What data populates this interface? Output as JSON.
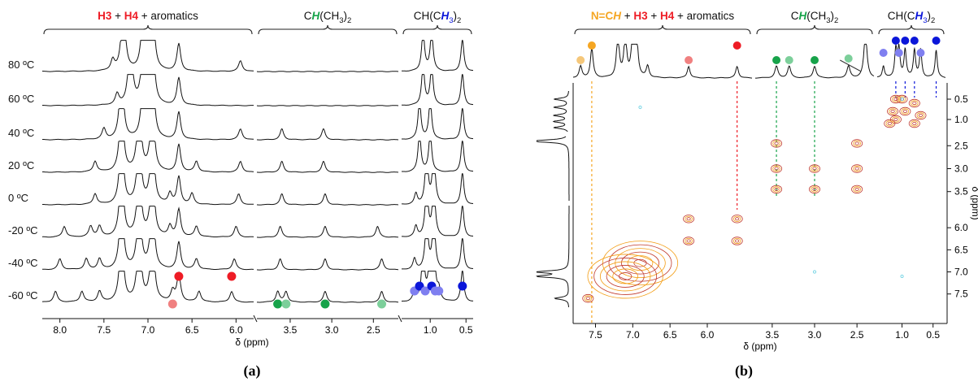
{
  "colors": {
    "red": "#ee1c25",
    "light_red": "#f08080",
    "green": "#17a34a",
    "light_green": "#7ccf9a",
    "blue": "#0b16d9",
    "light_blue": "#7f7ff0",
    "orange": "#f5a623",
    "light_orange": "#f5c77a",
    "trace": "#111111",
    "contour_red": "#c0392b",
    "contour_orange": "#f39c12",
    "contour_cyan": "#7fd7e6"
  },
  "panel_a": {
    "label": "(a)",
    "xlabel": "δ (ppm)",
    "region_labels": [
      {
        "parts": [
          [
            "H3",
            "red"
          ],
          [
            " + ",
            "black"
          ],
          [
            "H4",
            "red"
          ],
          [
            " + aromatics",
            "black"
          ]
        ]
      },
      {
        "parts": [
          [
            "C",
            "black"
          ],
          [
            "H",
            "green"
          ],
          [
            "(CH",
            "black"
          ],
          [
            "3",
            "black_sub"
          ],
          [
            ")",
            "black"
          ],
          [
            "2",
            "black_sub"
          ]
        ]
      },
      {
        "parts": [
          [
            "CH(C",
            "black"
          ],
          [
            "H",
            "blue"
          ],
          [
            "3",
            "blue_sub"
          ],
          [
            ")",
            "black"
          ],
          [
            "2",
            "black_sub"
          ]
        ]
      }
    ],
    "ticks": [
      "8.0",
      "7.5",
      "7.0",
      "6.5",
      "6.0",
      "3.5",
      "3.0",
      "2.5",
      "1.0",
      "0.5"
    ]
  },
  "panel_b": {
    "label": "(b)",
    "xlabel": "δ (ppm)",
    "ylabel": "δ (ppm)",
    "region_labels": [
      {
        "parts": [
          [
            "N=C",
            "orange"
          ],
          [
            "H",
            "orange"
          ],
          [
            " + ",
            "black"
          ],
          [
            "H3",
            "red"
          ],
          [
            " + ",
            "black"
          ],
          [
            "H4",
            "red"
          ],
          [
            " + aromatics",
            "black"
          ]
        ]
      },
      {
        "parts": [
          [
            "C",
            "black"
          ],
          [
            "H",
            "green"
          ],
          [
            "(CH",
            "black"
          ],
          [
            "3",
            "black_sub"
          ],
          [
            ")",
            "black"
          ],
          [
            "2",
            "black_sub"
          ]
        ]
      },
      {
        "parts": [
          [
            "CH(C",
            "black"
          ],
          [
            "H",
            "blue"
          ],
          [
            "3",
            "blue_sub"
          ],
          [
            ")",
            "black"
          ],
          [
            "2",
            "black_sub"
          ]
        ]
      }
    ],
    "xticks": [
      "7.5",
      "7.0",
      "6.5",
      "6.0",
      "3.5",
      "3.0",
      "2.5",
      "1.0",
      "0.5"
    ],
    "yticks": [
      "0.5",
      "1.0",
      "2.5",
      "3.0",
      "3.5",
      "6.0",
      "6.5",
      "7.0",
      "7.5"
    ]
  },
  "chart_data": [
    {
      "type": "line",
      "subtype": "stacked variable-temperature 1H NMR spectra",
      "title": "",
      "xlabel": "δ (ppm)",
      "ylabel": "",
      "x_axis": "broken (8.2–5.8, 3.9–2.2, 1.4–0.4), reversed",
      "series": [
        {
          "name": "80 ºC",
          "peaks_ppm": [
            7.4,
            7.28,
            7.05,
            6.95,
            6.65,
            5.95,
            1.1,
            0.98,
            0.55
          ]
        },
        {
          "name": "60 ºC",
          "peaks_ppm": [
            7.35,
            7.2,
            7.05,
            6.95,
            6.65,
            1.1,
            0.98,
            0.55
          ]
        },
        {
          "name": "40 ºC",
          "peaks_ppm": [
            7.5,
            7.3,
            7.05,
            6.95,
            6.65,
            5.95,
            3.6,
            3.1,
            1.15,
            1.0,
            0.55
          ]
        },
        {
          "name": "20 ºC",
          "peaks_ppm": [
            7.6,
            7.3,
            7.1,
            6.95,
            6.65,
            6.45,
            5.95,
            3.6,
            3.1,
            1.15,
            1.0,
            0.55
          ]
        },
        {
          "name": "0 ºC",
          "peaks_ppm": [
            7.6,
            7.3,
            7.1,
            6.95,
            6.75,
            6.65,
            6.5,
            5.97,
            3.6,
            3.08,
            1.2,
            1.05,
            0.95,
            0.55
          ]
        },
        {
          "name": "-20 ºC",
          "peaks_ppm": [
            7.95,
            7.65,
            7.55,
            7.3,
            7.1,
            6.95,
            6.75,
            6.65,
            6.45,
            6.0,
            3.62,
            3.08,
            2.45,
            1.2,
            1.05,
            0.95,
            0.55
          ]
        },
        {
          "name": "-40 ºC",
          "peaks_ppm": [
            8.0,
            7.7,
            7.55,
            7.3,
            7.1,
            6.95,
            6.65,
            6.45,
            6.02,
            3.62,
            3.08,
            2.4,
            1.22,
            1.05,
            0.95,
            0.55
          ]
        },
        {
          "name": "-60 ºC",
          "peaks_ppm": [
            8.05,
            7.75,
            7.55,
            7.3,
            7.1,
            6.95,
            6.72,
            6.65,
            6.42,
            6.05,
            3.65,
            3.55,
            3.08,
            2.4,
            1.22,
            1.1,
            1.0,
            0.95,
            0.88,
            0.55
          ]
        }
      ],
      "markers": [
        {
          "ppm": 6.72,
          "color": "light_red"
        },
        {
          "ppm": 6.65,
          "color": "red"
        },
        {
          "ppm": 6.05,
          "color": "red"
        },
        {
          "ppm": 3.65,
          "color": "green"
        },
        {
          "ppm": 3.55,
          "color": "light_green"
        },
        {
          "ppm": 3.08,
          "color": "green"
        },
        {
          "ppm": 2.4,
          "color": "light_green"
        },
        {
          "ppm": 1.22,
          "color": "light_blue"
        },
        {
          "ppm": 1.15,
          "color": "blue"
        },
        {
          "ppm": 1.07,
          "color": "light_blue"
        },
        {
          "ppm": 0.98,
          "color": "blue"
        },
        {
          "ppm": 0.93,
          "color": "light_blue"
        },
        {
          "ppm": 0.88,
          "color": "light_blue"
        },
        {
          "ppm": 0.55,
          "color": "blue"
        }
      ]
    },
    {
      "type": "heatmap",
      "subtype": "2D NMR correlation map (contour plot)",
      "title": "",
      "xlabel": "δ (ppm)",
      "ylabel": "δ (ppm)",
      "x_axis": "broken (7.8–5.4, 3.7–2.3, 1.4–0.3), reversed",
      "y_axis": "broken, increasing downward",
      "cross_peaks_ppm": [
        [
          1.1,
          0.5
        ],
        [
          1.0,
          0.5
        ],
        [
          0.8,
          0.6
        ],
        [
          1.15,
          0.8
        ],
        [
          0.95,
          0.8
        ],
        [
          0.7,
          0.9
        ],
        [
          1.1,
          1.0
        ],
        [
          1.2,
          1.1
        ],
        [
          0.8,
          1.1
        ],
        [
          3.45,
          2.45
        ],
        [
          2.5,
          2.45
        ],
        [
          3.45,
          3.0
        ],
        [
          3.0,
          3.0
        ],
        [
          2.5,
          3.0
        ],
        [
          3.45,
          3.45
        ],
        [
          3.0,
          3.45
        ],
        [
          2.5,
          3.45
        ],
        [
          6.25,
          5.8
        ],
        [
          5.6,
          5.8
        ],
        [
          6.25,
          6.3
        ],
        [
          5.6,
          6.3
        ],
        [
          6.9,
          6.8
        ],
        [
          7.1,
          7.1
        ],
        [
          7.6,
          7.6
        ]
      ],
      "markers": [
        {
          "ppm": 7.7,
          "color": "light_orange"
        },
        {
          "ppm": 7.55,
          "color": "orange"
        },
        {
          "ppm": 6.25,
          "color": "light_red"
        },
        {
          "ppm": 5.6,
          "color": "red"
        },
        {
          "ppm": 3.45,
          "color": "green"
        },
        {
          "ppm": 3.3,
          "color": "light_green"
        },
        {
          "ppm": 3.0,
          "color": "green"
        },
        {
          "ppm": 2.6,
          "color": "light_green"
        },
        {
          "ppm": 1.3,
          "color": "light_blue"
        },
        {
          "ppm": 1.1,
          "color": "blue"
        },
        {
          "ppm": 1.05,
          "color": "light_blue"
        },
        {
          "ppm": 0.95,
          "color": "blue"
        },
        {
          "ppm": 0.8,
          "color": "blue"
        },
        {
          "ppm": 0.7,
          "color": "light_blue"
        },
        {
          "ppm": 0.45,
          "color": "blue"
        }
      ]
    }
  ]
}
